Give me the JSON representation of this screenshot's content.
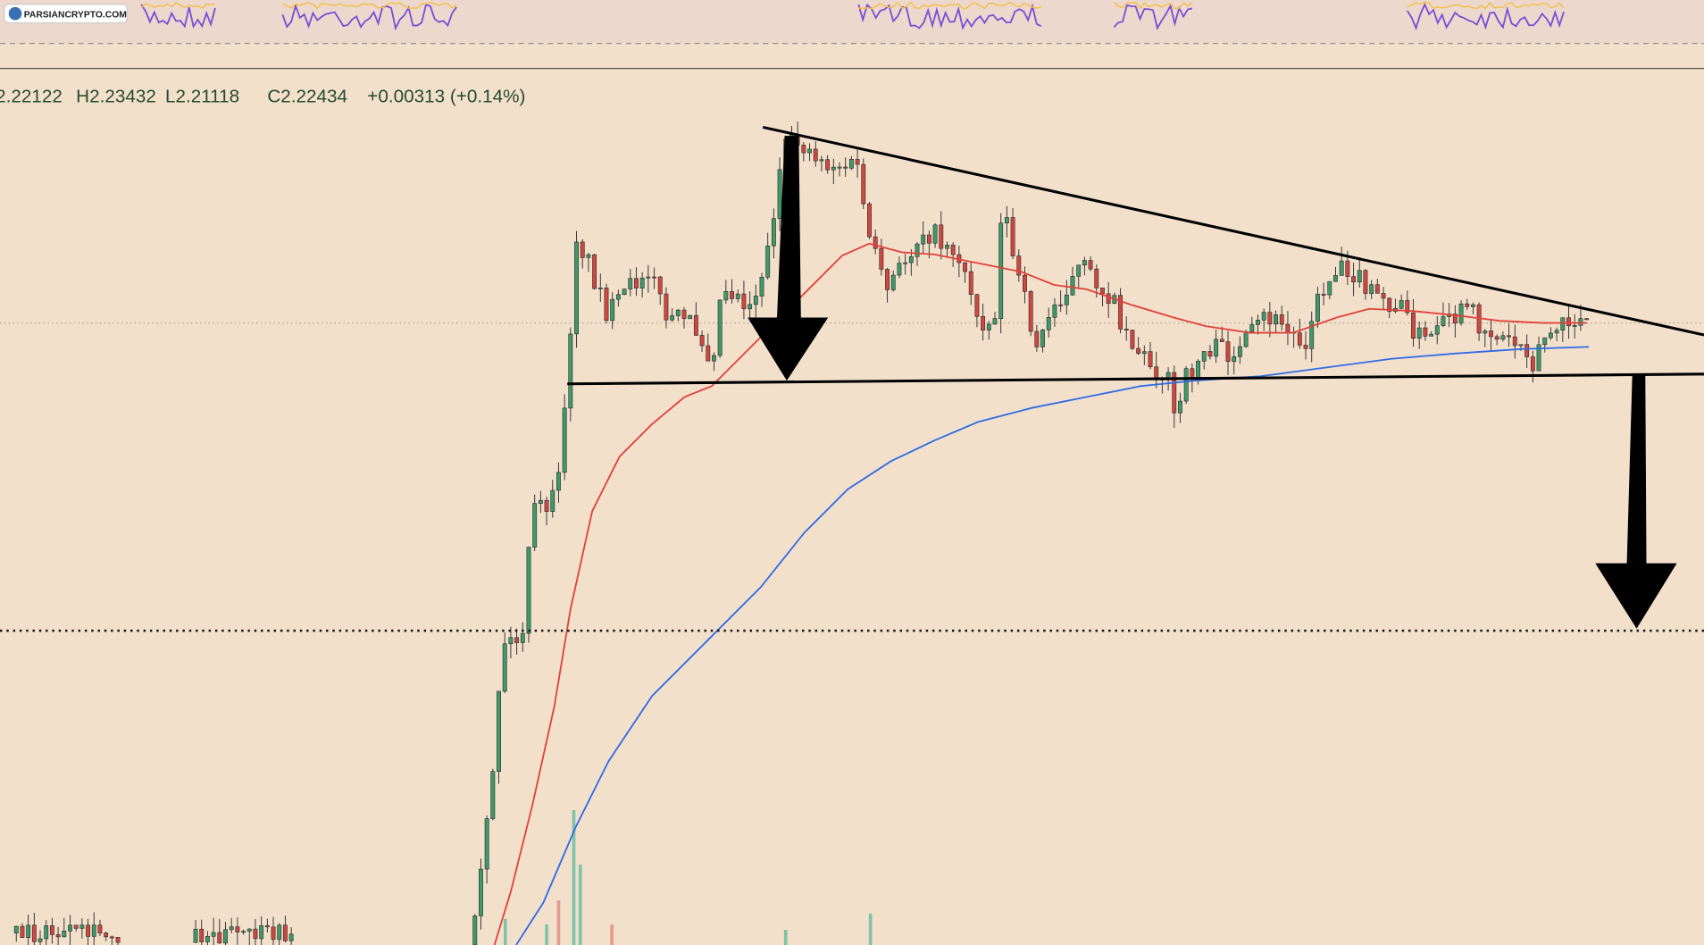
{
  "watermark": "PARSIANCRYPTO.COM",
  "ohlc": {
    "open": "2.22122",
    "high": "H2.23432",
    "low": "L2.21118",
    "close": "C2.22434",
    "change": "+0.00313 (+0.14%)"
  }
}
